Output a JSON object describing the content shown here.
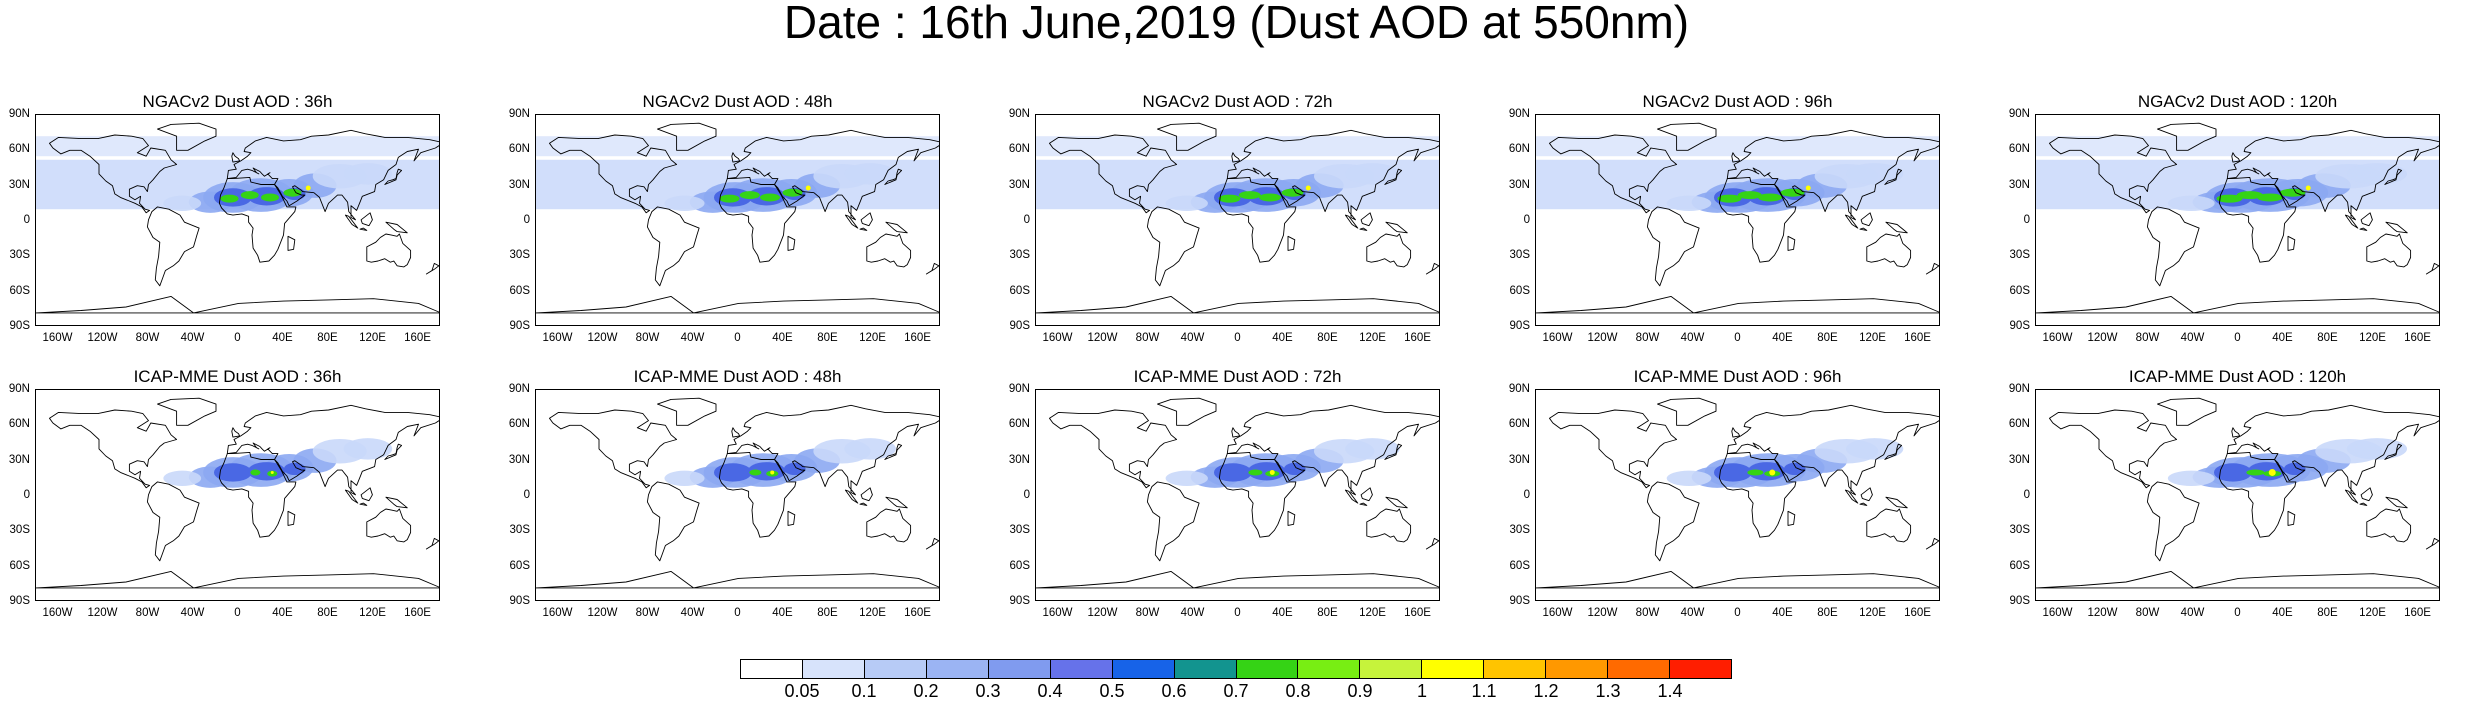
{
  "title": "Date : 16th June,2019 (Dust AOD at 550nm)",
  "panels": [
    {
      "title": "NGACv2 Dust AOD : 36h",
      "model": "NGACv2",
      "lead": "36h"
    },
    {
      "title": "NGACv2 Dust AOD : 48h",
      "model": "NGACv2",
      "lead": "48h"
    },
    {
      "title": "NGACv2 Dust AOD : 72h",
      "model": "NGACv2",
      "lead": "72h"
    },
    {
      "title": "NGACv2 Dust AOD : 96h",
      "model": "NGACv2",
      "lead": "96h"
    },
    {
      "title": "NGACv2 Dust AOD : 120h",
      "model": "NGACv2",
      "lead": "120h"
    },
    {
      "title": "ICAP-MME Dust AOD : 36h",
      "model": "ICAP-MME",
      "lead": "36h"
    },
    {
      "title": "ICAP-MME Dust AOD : 48h",
      "model": "ICAP-MME",
      "lead": "48h"
    },
    {
      "title": "ICAP-MME Dust AOD : 72h",
      "model": "ICAP-MME",
      "lead": "72h"
    },
    {
      "title": "ICAP-MME Dust AOD : 96h",
      "model": "ICAP-MME",
      "lead": "96h"
    },
    {
      "title": "ICAP-MME Dust AOD : 120h",
      "model": "ICAP-MME",
      "lead": "120h"
    }
  ],
  "lat_ticks": [
    "90N",
    "60N",
    "30N",
    "0",
    "30S",
    "60S",
    "90S"
  ],
  "lon_ticks": [
    "160W",
    "120W",
    "80W",
    "40W",
    "0",
    "40E",
    "80E",
    "120E",
    "160E"
  ],
  "lon_tick_values": [
    -160,
    -120,
    -80,
    -40,
    0,
    40,
    80,
    120,
    160
  ],
  "lat_tick_values": [
    90,
    60,
    30,
    0,
    -30,
    -60,
    -90
  ],
  "colorbar": {
    "labels": [
      "0.05",
      "0.1",
      "0.2",
      "0.3",
      "0.4",
      "0.5",
      "0.6",
      "0.7",
      "0.8",
      "0.9",
      "1",
      "1.1",
      "1.2",
      "1.3",
      "1.4"
    ],
    "colors": [
      "#ffffff",
      "#d7e3fb",
      "#b7cbf6",
      "#9bb4f3",
      "#809bef",
      "#6672ea",
      "#1763e8",
      "#12948f",
      "#35d315",
      "#78ee13",
      "#c6f33b",
      "#ffff00",
      "#ffc400",
      "#ff9800",
      "#ff6a00",
      "#ff1e00"
    ]
  },
  "map_colors": {
    "coast": "#000000",
    "dust_low": "#c9d8fa",
    "dust_mid": "#8ca8f2",
    "dust_high": "#4a68e4",
    "dust_core": "#35d315",
    "dust_peak": "#ffff00"
  }
}
